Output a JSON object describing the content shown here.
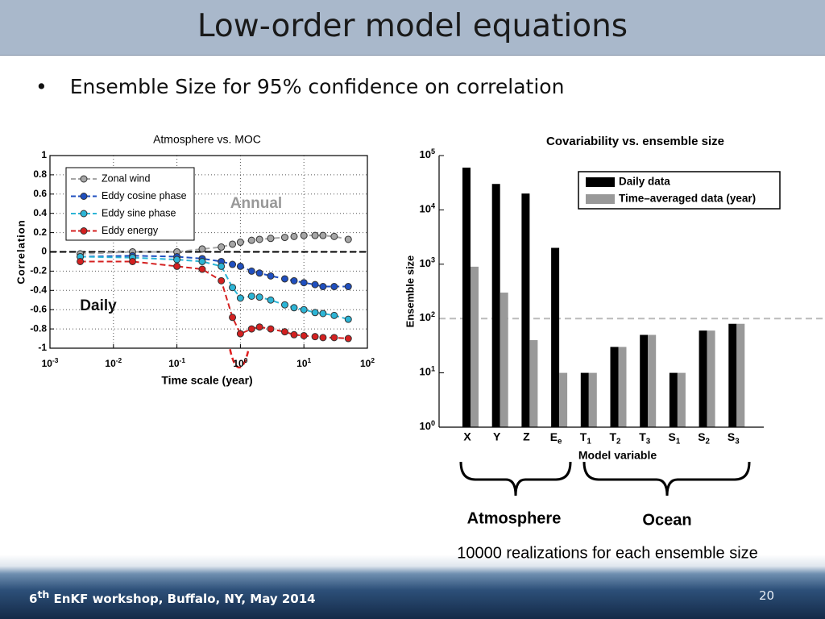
{
  "title": "Low-order model equations",
  "bullet": "Ensemble Size for 95% confidence on correlation",
  "annotations": [
    "Atmosphere",
    "Ocean",
    "10000 realizations for each ensemble size"
  ],
  "footer": {
    "ordinal": "6",
    "suffix": "th",
    "text": "EnKF workshop, Buffalo, NY, May 2014",
    "page": "20"
  },
  "chart_data": [
    {
      "type": "line",
      "title": "Atmosphere vs. MOC",
      "x_label": "Time scale (year)",
      "y_label": "Correlation",
      "xscale": "log",
      "grid": true,
      "legend": "upper left",
      "reference_line": 0,
      "annotations": [
        "Annual",
        "Daily"
      ],
      "x": [
        0.003,
        0.02,
        0.1,
        0.25,
        0.5,
        0.75,
        1,
        1.5,
        2,
        3,
        5,
        7,
        10,
        15,
        20,
        30,
        50
      ],
      "series": [
        {
          "name": "Zonal wind",
          "color": "#a6a6a6",
          "values": [
            -0.02,
            0,
            0,
            0.03,
            0.05,
            0.08,
            0.1,
            0.12,
            0.13,
            0.14,
            0.15,
            0.16,
            0.17,
            0.17,
            0.17,
            0.16,
            0.13
          ]
        },
        {
          "name": "Eddy cosine phase",
          "color": "#1f4fbf",
          "values": [
            -0.05,
            -0.04,
            -0.05,
            -0.07,
            -0.1,
            -0.13,
            -0.15,
            -0.2,
            -0.22,
            -0.25,
            -0.28,
            -0.3,
            -0.32,
            -0.34,
            -0.36,
            -0.36,
            -0.36
          ]
        },
        {
          "name": "Eddy sine phase",
          "color": "#2cb5d6",
          "values": [
            -0.05,
            -0.06,
            -0.08,
            -0.1,
            -0.15,
            -0.37,
            -0.48,
            -0.46,
            -0.47,
            -0.5,
            -0.55,
            -0.58,
            -0.6,
            -0.63,
            -0.64,
            -0.66,
            -0.7
          ]
        },
        {
          "name": "Eddy energy",
          "color": "#d42020",
          "values": [
            -0.1,
            -0.1,
            -0.15,
            -0.18,
            -0.3,
            -0.68,
            -0.85,
            -0.8,
            -0.78,
            -0.8,
            -0.83,
            -0.86,
            -0.87,
            -0.88,
            -0.89,
            -0.89,
            -0.9
          ]
        }
      ],
      "xlim": [
        0.001,
        100
      ],
      "xticks": [
        {
          "value": 0.001,
          "label": "10^-3"
        },
        {
          "value": 0.01,
          "label": "10^-2"
        },
        {
          "value": 0.1,
          "label": "10^-1"
        },
        {
          "value": 1,
          "label": "10^0"
        },
        {
          "value": 10,
          "label": "10^1"
        },
        {
          "value": 100,
          "label": "10^2"
        }
      ],
      "ylim": [
        -1,
        1
      ],
      "yticks": [
        -1,
        -0.8,
        -0.6,
        -0.4,
        -0.2,
        0,
        0.2,
        0.4,
        0.6,
        0.8,
        1
      ]
    },
    {
      "type": "bar",
      "title": "Covariability vs. ensemble size",
      "x_label": "Model variable",
      "y_label": "Ensemble size",
      "yscale": "log",
      "grid": false,
      "legend": "upper right",
      "reference_line": 100,
      "categories": [
        "X",
        "Y",
        "Z",
        "E_e",
        "T_1",
        "T_2",
        "T_3",
        "S_1",
        "S_2",
        "S_3"
      ],
      "series": [
        {
          "name": "Daily data",
          "color": "#000000",
          "values": [
            60000,
            30000,
            20000,
            2000,
            10,
            30,
            50,
            10,
            60,
            80
          ]
        },
        {
          "name": "Time–averaged data (year)",
          "color": "#999999",
          "values": [
            900,
            300,
            40,
            10,
            10,
            30,
            50,
            10,
            60,
            80
          ]
        }
      ],
      "ylim": [
        1,
        100000
      ],
      "yticks": [
        {
          "value": 1,
          "label": "10^0"
        },
        {
          "value": 10,
          "label": "10^1"
        },
        {
          "value": 100,
          "label": "10^2"
        },
        {
          "value": 1000,
          "label": "10^3"
        },
        {
          "value": 10000,
          "label": "10^4"
        },
        {
          "value": 100000,
          "label": "10^5"
        }
      ]
    }
  ]
}
